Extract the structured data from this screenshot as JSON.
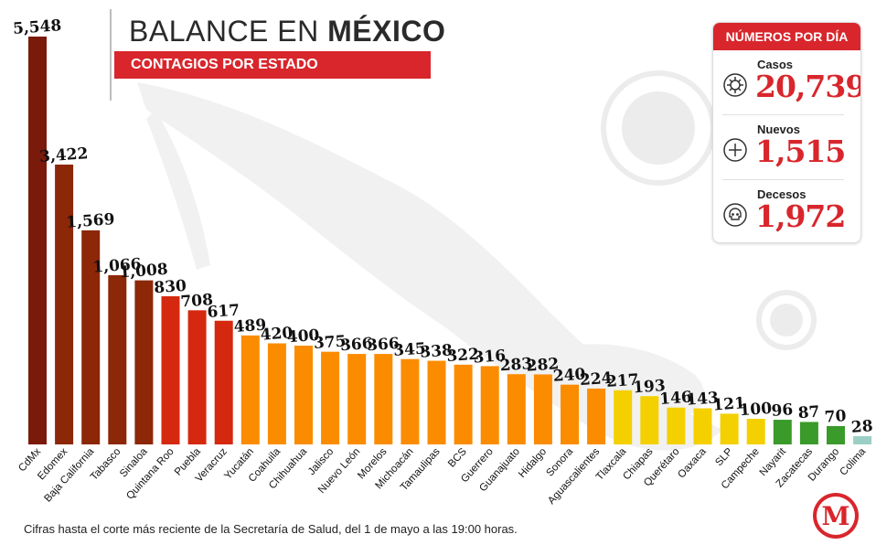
{
  "header": {
    "title_light": "BALANCE EN ",
    "title_bold": "MÉXICO",
    "subtitle": "CONTAGIOS POR ESTADO"
  },
  "stats": {
    "title": "NÚMEROS POR DÍA",
    "items": [
      {
        "label": "Casos",
        "value": "20,739",
        "icon": "virus-icon"
      },
      {
        "label": "Nuevos",
        "value": "1,515",
        "icon": "plus-circle-icon"
      },
      {
        "label": "Decesos",
        "value": "1,972",
        "icon": "skull-icon"
      }
    ]
  },
  "footer": {
    "note": "Cifras hasta el corte más reciente de la Secretaría de Salud, del 1 de mayo a las 19:00 horas."
  },
  "logo": {
    "letter": "M",
    "color": "#d8262c"
  },
  "chart_data": {
    "type": "bar",
    "title": "CONTAGIOS POR ESTADO",
    "categories": [
      "CdMx",
      "Edomex",
      "Baja California",
      "Tabasco",
      "Sinaloa",
      "Quintana Roo",
      "Puebla",
      "Veracruz",
      "Yucatán",
      "Coahuila",
      "Chihuahua",
      "Jalisco",
      "Nuevo León",
      "Morelos",
      "Michoacán",
      "Tamaulipas",
      "BCS",
      "Guerrero",
      "Guanajuato",
      "Hidalgo",
      "Sonora",
      "Aguascalientes",
      "Tlaxcala",
      "Chiapas",
      "Querétaro",
      "Oaxaca",
      "SLP",
      "Campeche",
      "Nayarit",
      "Zacatecas",
      "Durango",
      "Colima"
    ],
    "values": [
      5548,
      3422,
      1569,
      1066,
      1008,
      830,
      708,
      617,
      489,
      420,
      400,
      375,
      366,
      366,
      345,
      338,
      322,
      316,
      283,
      282,
      240,
      224,
      217,
      193,
      146,
      143,
      121,
      100,
      96,
      87,
      70,
      28
    ],
    "value_labels": [
      "5,548",
      "3,422",
      "1,569",
      "1,066",
      "1,008",
      "830",
      "708",
      "617",
      "489",
      "420",
      "400",
      "375",
      "366",
      "366",
      "345",
      "338",
      "322",
      "316",
      "283",
      "282",
      "240",
      "224",
      "217",
      "193",
      "146",
      "143",
      "121",
      "100",
      "96",
      "87",
      "70",
      "28"
    ],
    "colors": [
      "#7a1a0a",
      "#8c2708",
      "#8c2708",
      "#8c2708",
      "#8c2708",
      "#d5290f",
      "#d5290f",
      "#d5290f",
      "#fb8c00",
      "#fb8c00",
      "#fb8c00",
      "#fb8c00",
      "#fb8c00",
      "#fb8c00",
      "#fb8c00",
      "#fb8c00",
      "#fb8c00",
      "#fb8c00",
      "#fb8c00",
      "#fb8c00",
      "#fb8c00",
      "#fb8c00",
      "#f4d000",
      "#f4d000",
      "#f4d000",
      "#f4d000",
      "#f4d000",
      "#f4d000",
      "#3a9a2a",
      "#3a9a2a",
      "#3a9a2a",
      "#9ccfc4"
    ],
    "axis": {
      "scale": "nonlinear",
      "grid": false,
      "legend": "none"
    }
  }
}
